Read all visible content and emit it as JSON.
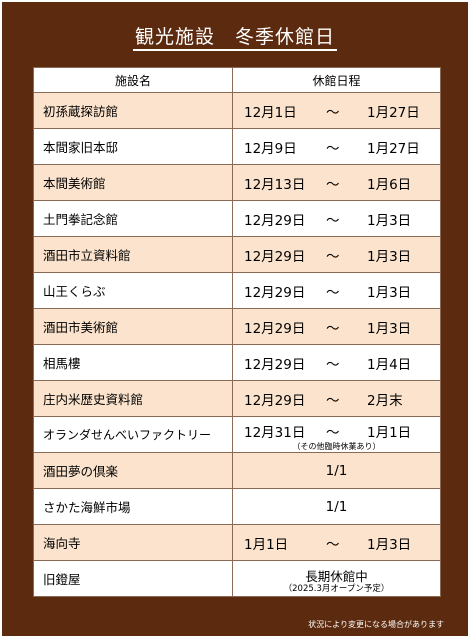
{
  "title": "観光施設　冬季休館日",
  "header": {
    "name": "施設名",
    "schedule": "休館日程"
  },
  "rows": [
    {
      "name": "初孫蔵探訪館",
      "start": "12月1日",
      "tilde": "～",
      "end": "1月27日"
    },
    {
      "name": "本間家旧本邸",
      "start": "12月9日",
      "tilde": "～",
      "end": "1月27日"
    },
    {
      "name": "本間美術館",
      "start": "12月13日",
      "tilde": "～",
      "end": "1月6日"
    },
    {
      "name": "土門拳記念館",
      "start": "12月29日",
      "tilde": "～",
      "end": "1月3日"
    },
    {
      "name": "酒田市立資料館",
      "start": "12月29日",
      "tilde": "～",
      "end": "1月3日"
    },
    {
      "name": "山王くらぶ",
      "start": "12月29日",
      "tilde": "～",
      "end": "1月3日"
    },
    {
      "name": "酒田市美術館",
      "start": "12月29日",
      "tilde": "～",
      "end": "1月3日"
    },
    {
      "name": "相馬樓",
      "start": "12月29日",
      "tilde": "～",
      "end": "1月4日"
    },
    {
      "name": "庄内米歴史資料館",
      "start": "12月29日",
      "tilde": "～",
      "end": "2月末"
    },
    {
      "name": "オランダせんべいファクトリー",
      "start": "12月31日",
      "tilde": "～",
      "end": "1月1日",
      "note": "（その他臨時休業あり）"
    },
    {
      "name": "酒田夢の倶楽",
      "single": "1/1"
    },
    {
      "name": "さかた海鮮市場",
      "single": "1/1"
    },
    {
      "name": "海向寺",
      "start": "1月1日",
      "tilde": "～",
      "end": "1月3日"
    },
    {
      "name": "旧鐙屋",
      "closed": "長期休館中",
      "closed_note": "（2025.3月オープン予定）"
    }
  ],
  "footnote": "状況により変更になる場合があります",
  "colors": {
    "background": "#5c2a0f",
    "row_highlight": "#fbe3cd",
    "row_plain": "#ffffff"
  }
}
